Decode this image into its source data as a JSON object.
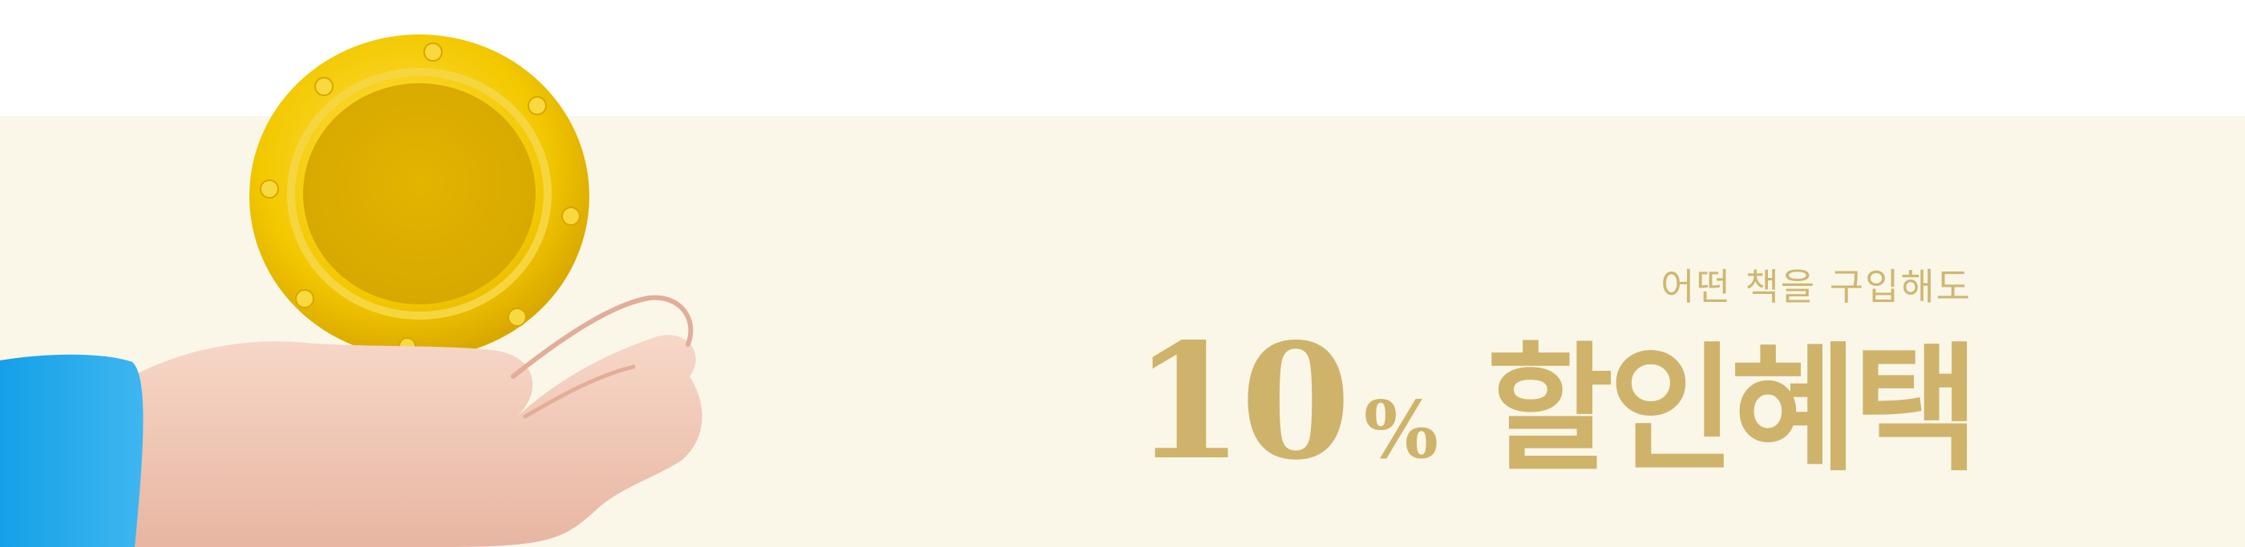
{
  "promo": {
    "subtitle": "어떤 책을 구입해도",
    "discount_number": "10",
    "percent_sign": "%",
    "benefit": "할인혜택"
  },
  "illustration": {
    "icon": "hand-holding-coin-icon"
  },
  "colors": {
    "panel_background": "#faf7e8",
    "headline_text": "#cfb36a",
    "subtitle_text": "#cfb772",
    "coin": "#dfb000",
    "sleeve": "#1fa3e6",
    "hand": "#f0c7b5"
  }
}
